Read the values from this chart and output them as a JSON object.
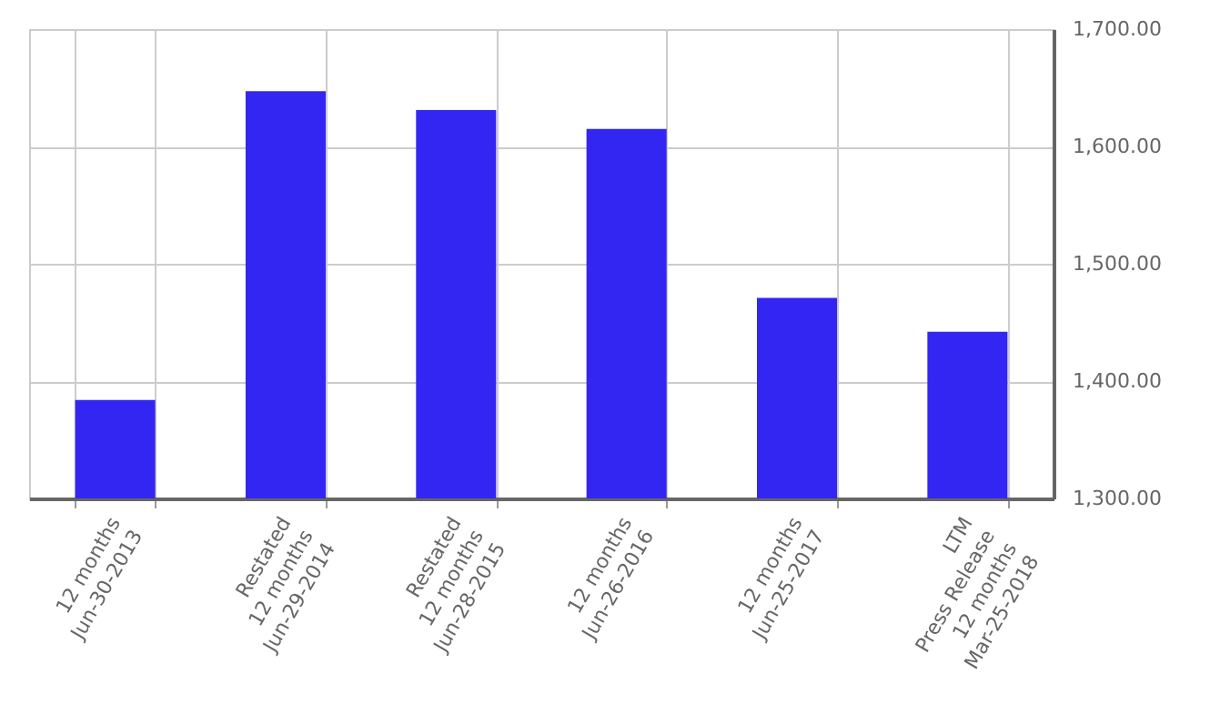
{
  "chart_data": {
    "type": "bar",
    "categories": [
      "12 months\nJun-30-2013",
      "Restated\n12 months\nJun-29-2014",
      "Restated\n12 months\nJun-28-2015",
      "12 months\nJun-26-2016",
      "12 months\nJun-25-2017",
      "LTM\nPress Release\n12 months\nMar-25-2018"
    ],
    "values": [
      1384,
      1647,
      1631,
      1615,
      1471,
      1442
    ],
    "color": "#3326f2",
    "ylim": [
      1300,
      1700
    ],
    "yticks": [
      {
        "value": 1300,
        "label": "1,300.00"
      },
      {
        "value": 1400,
        "label": "1,400.00"
      },
      {
        "value": 1500,
        "label": "1,500.00"
      },
      {
        "value": 1600,
        "label": "1,600.00"
      },
      {
        "value": 1700,
        "label": "1,700.00"
      }
    ],
    "grid": true
  }
}
